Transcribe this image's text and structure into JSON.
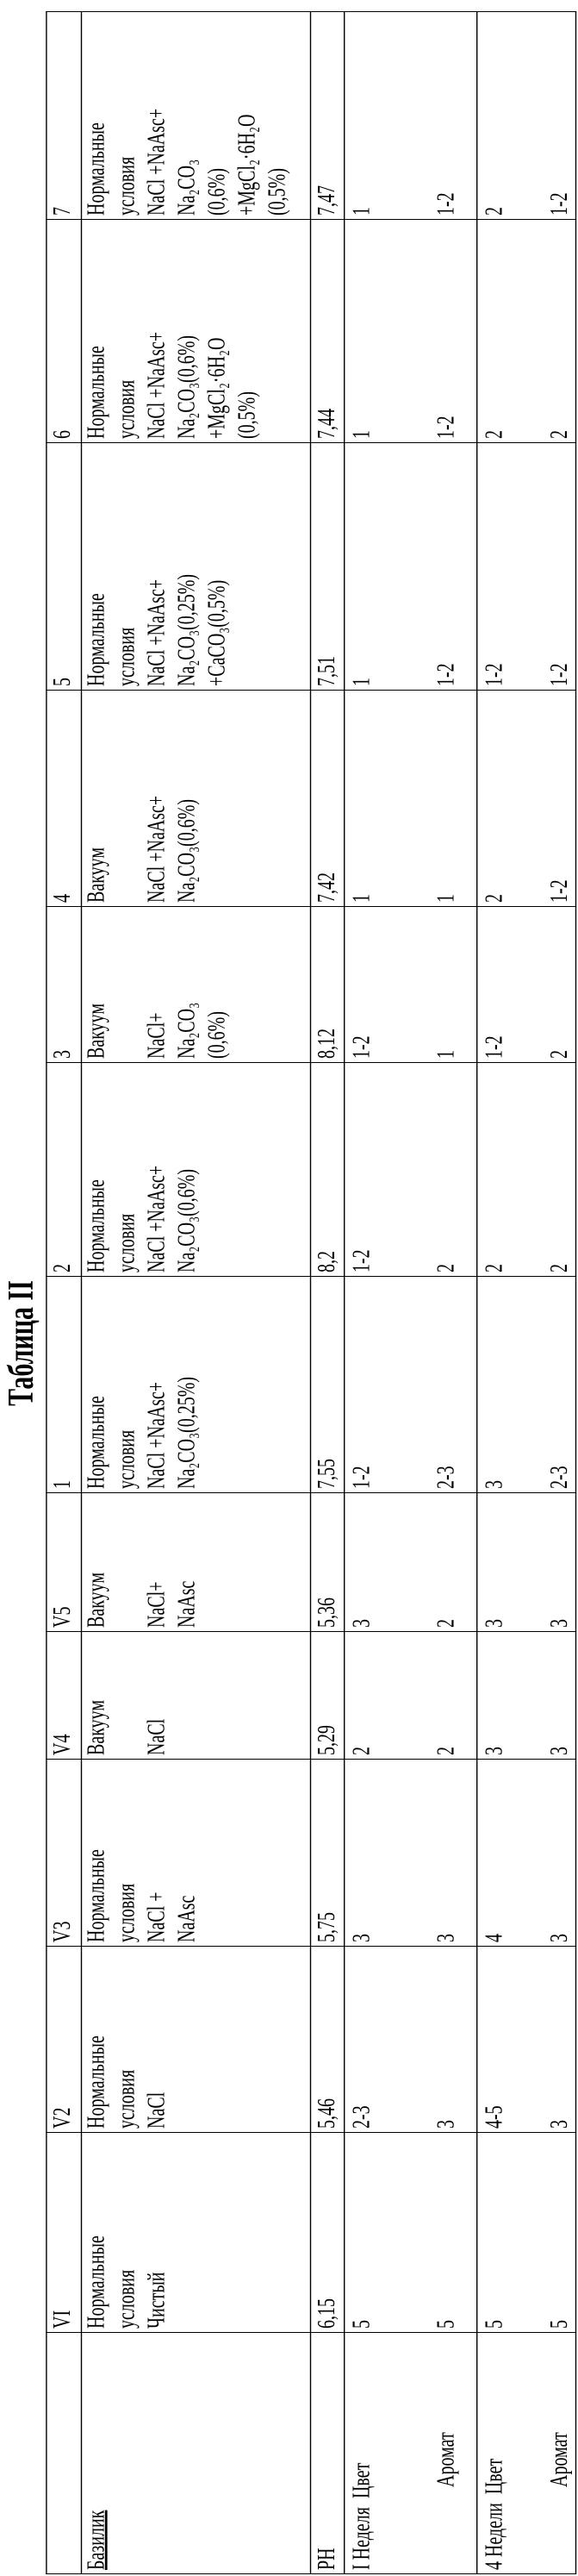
{
  "title": "Таблица II",
  "row_labels": {
    "basil": "Базилик",
    "ph": "PH",
    "week1": "I Неделя",
    "week4": "4 Недели",
    "color": "Цвет",
    "aroma": "Аромат"
  },
  "columns": [
    {
      "id": "VI",
      "conditions": [
        "Нормальные",
        "условия",
        "Чистый"
      ],
      "ph": "6,15",
      "w1_color": "5",
      "w1_aroma": "5",
      "w4_color": "5",
      "w4_aroma": "5"
    },
    {
      "id": "V2",
      "conditions": [
        "Нормальные",
        "условия",
        "NaCl"
      ],
      "ph": "5,46",
      "w1_color": "2-3",
      "w1_aroma": "3",
      "w4_color": "4-5",
      "w4_aroma": "3"
    },
    {
      "id": "V3",
      "conditions": [
        "Нормальные",
        "условия",
        "NaCl +",
        "NaAsc"
      ],
      "ph": "5,75",
      "w1_color": "3",
      "w1_aroma": "3",
      "w4_color": "4",
      "w4_aroma": "3"
    },
    {
      "id": "V4",
      "conditions": [
        "Вакуум",
        "",
        "NaCl"
      ],
      "ph": "5,29",
      "w1_color": "2",
      "w1_aroma": "2",
      "w4_color": "3",
      "w4_aroma": "3"
    },
    {
      "id": "V5",
      "conditions": [
        "Вакуум",
        "",
        "NaCl+",
        "NaAsc"
      ],
      "ph": "5,36",
      "w1_color": "3",
      "w1_aroma": "2",
      "w4_color": "3",
      "w4_aroma": "3"
    },
    {
      "id": "1",
      "conditions": [
        "Нормальные",
        "условия",
        "NaCl +NaAsc+",
        "Na₂CO₃(0,25%)"
      ],
      "ph": "7,55",
      "w1_color": "1-2",
      "w1_aroma": "2-3",
      "w4_color": "3",
      "w4_aroma": "2-3"
    },
    {
      "id": "2",
      "conditions": [
        "Нормальные",
        "условия",
        "NaCl +NaAsc+",
        "Na₂CO₃(0,6%)"
      ],
      "ph": "8,2",
      "w1_color": "1-2",
      "w1_aroma": "2",
      "w4_color": "2",
      "w4_aroma": "2"
    },
    {
      "id": "3",
      "conditions": [
        "Вакуум",
        "",
        "NaCl+",
        "Na₂CO₃",
        "(0,6%)"
      ],
      "ph": "8,12",
      "w1_color": "1-2",
      "w1_aroma": "1",
      "w4_color": "1-2",
      "w4_aroma": "2"
    },
    {
      "id": "4",
      "conditions": [
        "Вакуум",
        "",
        "NaCl +NaAsc+",
        "Na₂CO₃(0,6%)"
      ],
      "ph": "7,42",
      "w1_color": "1",
      "w1_aroma": "1",
      "w4_color": "2",
      "w4_aroma": "1-2"
    },
    {
      "id": "5",
      "conditions": [
        "Нормальные",
        "условия",
        "NaCl +NaAsc+",
        "Na₂CO₃(0,25%)",
        "+CaCO₃(0,5%)"
      ],
      "ph": "7,51",
      "w1_color": "1",
      "w1_aroma": "1-2",
      "w4_color": "1-2",
      "w4_aroma": "1-2"
    },
    {
      "id": "6",
      "conditions": [
        "Нормальные",
        "условия",
        "NaCl +NaAsc+",
        "Na₂CO₃(0,6%)",
        "+MgCl₂·6H₂O",
        "(0,5%)"
      ],
      "ph": "7,44",
      "w1_color": "1",
      "w1_aroma": "1-2",
      "w4_color": "2",
      "w4_aroma": "2"
    },
    {
      "id": "7",
      "conditions": [
        "Нормальные",
        "условия",
        "NaCl +NaAsc+",
        "Na₂CO₃",
        "(0,6%)",
        "+MgCl₂·6H₂O",
        "(0,5%)"
      ],
      "ph": "7,47",
      "w1_color": "1",
      "w1_aroma": "1-2",
      "w4_color": "2",
      "w4_aroma": "1-2"
    }
  ]
}
